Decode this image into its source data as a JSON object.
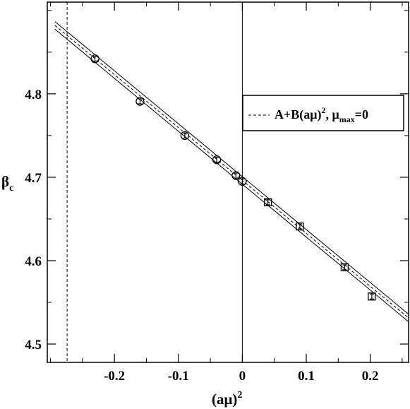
{
  "chart_data": {
    "type": "scatter",
    "xlabel": "(aμ)",
    "xlabel_sup": "2",
    "ylabel": "β",
    "ylabel_sub": "c",
    "xlim": [
      -0.305,
      0.26
    ],
    "ylim": [
      4.478,
      4.91
    ],
    "xticks": [
      -0.2,
      -0.1,
      0,
      0.1,
      0.2
    ],
    "xtick_labels": [
      "-0.2",
      "-0.1",
      "0",
      "0.1",
      "0.2"
    ],
    "yticks": [
      4.5,
      4.6,
      4.7,
      4.8
    ],
    "ytick_labels": [
      "4.5",
      "4.6",
      "4.7",
      "4.8"
    ],
    "grid": false,
    "legend": {
      "position": "right",
      "text_main": "A+B(aμ)",
      "text_sup": "2",
      "text_mid": ",   μ",
      "text_sub": "max",
      "text_end": "=0"
    },
    "series": [
      {
        "marker": "circle",
        "points": [
          {
            "x": -0.2304,
            "y": 4.842,
            "err": 0.003
          },
          {
            "x": -0.16,
            "y": 4.791,
            "err": 0.003
          },
          {
            "x": -0.09,
            "y": 4.75,
            "err": 0.003
          },
          {
            "x": -0.04,
            "y": 4.721,
            "err": 0.003
          },
          {
            "x": -0.01,
            "y": 4.702,
            "err": 0.003
          },
          {
            "x": 0.0,
            "y": 4.695,
            "err": 0.003
          }
        ]
      },
      {
        "marker": "square",
        "points": [
          {
            "x": 0.04,
            "y": 4.67,
            "err": 0.003
          },
          {
            "x": 0.09,
            "y": 4.641,
            "err": 0.003
          },
          {
            "x": 0.16,
            "y": 4.592,
            "err": 0.003
          },
          {
            "x": 0.2025,
            "y": 4.557,
            "err": 0.003
          }
        ]
      }
    ],
    "fit": {
      "A": 4.6962,
      "B": -0.6345,
      "band": 0.0045,
      "style": "dashed center with solid error band"
    },
    "vlines": [
      {
        "x": -0.274,
        "style": "dashed"
      },
      {
        "x": 0.0,
        "style": "solid"
      }
    ]
  }
}
